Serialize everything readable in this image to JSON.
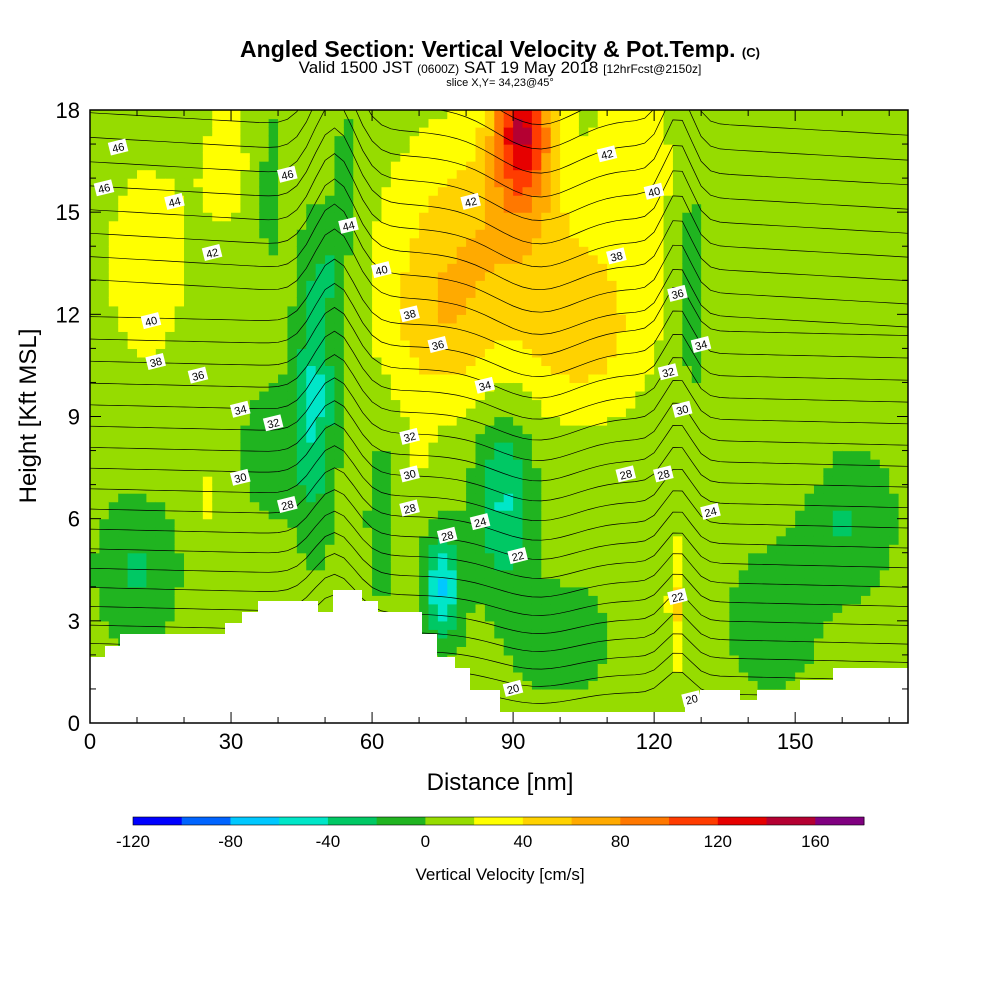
{
  "title": {
    "main": "Angled Section: Vertical Velocity & Pot.Temp.",
    "main_unit": "(C)",
    "valid_a": "Valid 1500 JST",
    "valid_b": "(0600Z)",
    "valid_c": "SAT 19 May 2018",
    "valid_d": "[12hrFcst@2150z]",
    "slice": "slice X,Y= 34,23@45°"
  },
  "chart_data": {
    "type": "heatmap",
    "xlabel": "Distance [nm]",
    "ylabel": "Height [Kft MSL]",
    "xlim": [
      0,
      174
    ],
    "ylim": [
      0,
      18
    ],
    "x_ticks": [
      0,
      30,
      60,
      90,
      120,
      150
    ],
    "y_ticks": [
      0,
      3,
      6,
      9,
      12,
      15,
      18
    ],
    "colorbar": {
      "label": "Vertical Velocity [cm/s]",
      "range": [
        -120,
        180
      ],
      "step": 20,
      "tick_labels": [
        "-120",
        "-80",
        "-40",
        "0",
        "40",
        "80",
        "120",
        "160"
      ],
      "colors": [
        "#0000ff",
        "#0064ff",
        "#00c8ff",
        "#00e6c8",
        "#00c864",
        "#20b420",
        "#96dc00",
        "#ffff00",
        "#ffd200",
        "#ffaa00",
        "#ff7800",
        "#ff3c00",
        "#e60000",
        "#b40032",
        "#800080"
      ]
    },
    "pot_temp_contour_labels": [
      {
        "text": "46",
        "x": 6,
        "y": 16.9
      },
      {
        "text": "46",
        "x": 3,
        "y": 15.7
      },
      {
        "text": "46",
        "x": 42,
        "y": 16.1
      },
      {
        "text": "44",
        "x": 18,
        "y": 15.3
      },
      {
        "text": "44",
        "x": 55,
        "y": 14.6
      },
      {
        "text": "42",
        "x": 26,
        "y": 13.8
      },
      {
        "text": "42",
        "x": 81,
        "y": 15.3
      },
      {
        "text": "42",
        "x": 110,
        "y": 16.7
      },
      {
        "text": "40",
        "x": 13,
        "y": 11.8
      },
      {
        "text": "40",
        "x": 62,
        "y": 13.3
      },
      {
        "text": "40",
        "x": 120,
        "y": 15.6
      },
      {
        "text": "38",
        "x": 14,
        "y": 10.6
      },
      {
        "text": "38",
        "x": 68,
        "y": 12.0
      },
      {
        "text": "38",
        "x": 112,
        "y": 13.7
      },
      {
        "text": "36",
        "x": 23,
        "y": 10.2
      },
      {
        "text": "36",
        "x": 74,
        "y": 11.1
      },
      {
        "text": "36",
        "x": 125,
        "y": 12.6
      },
      {
        "text": "34",
        "x": 32,
        "y": 9.2
      },
      {
        "text": "34",
        "x": 84,
        "y": 9.9
      },
      {
        "text": "34",
        "x": 130,
        "y": 11.1
      },
      {
        "text": "32",
        "x": 39,
        "y": 8.8
      },
      {
        "text": "32",
        "x": 68,
        "y": 8.4
      },
      {
        "text": "32",
        "x": 123,
        "y": 10.3
      },
      {
        "text": "30",
        "x": 32,
        "y": 7.2
      },
      {
        "text": "30",
        "x": 68,
        "y": 7.3
      },
      {
        "text": "30",
        "x": 126,
        "y": 9.2
      },
      {
        "text": "28",
        "x": 42,
        "y": 6.4
      },
      {
        "text": "28",
        "x": 68,
        "y": 6.3
      },
      {
        "text": "28",
        "x": 76,
        "y": 5.5
      },
      {
        "text": "28",
        "x": 114,
        "y": 7.3
      },
      {
        "text": "28",
        "x": 122,
        "y": 7.3
      },
      {
        "text": "24",
        "x": 83,
        "y": 5.9
      },
      {
        "text": "24",
        "x": 132,
        "y": 6.2
      },
      {
        "text": "22",
        "x": 91,
        "y": 4.9
      },
      {
        "text": "22",
        "x": 125,
        "y": 3.7
      },
      {
        "text": "20",
        "x": 90,
        "y": 1.0
      },
      {
        "text": "20",
        "x": 128,
        "y": 0.7
      }
    ]
  }
}
